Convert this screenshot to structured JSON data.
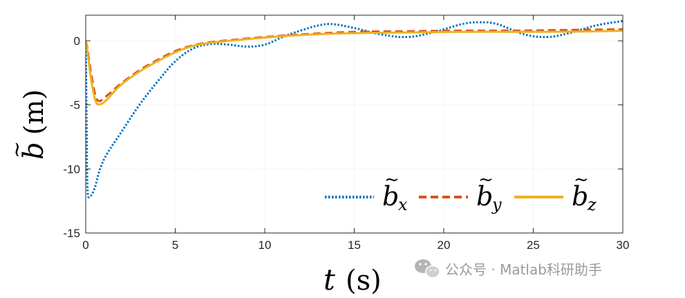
{
  "chart_data": {
    "type": "line",
    "ylabel": {
      "symbol": "b",
      "accent": "~",
      "unit": "(m)"
    },
    "xlabel": {
      "symbol": "t",
      "unit": "(s)"
    },
    "xlim": [
      0,
      30
    ],
    "ylim": [
      -15,
      2
    ],
    "xticks": [
      0,
      5,
      10,
      15,
      20,
      25,
      30
    ],
    "yticks": [
      -15,
      -10,
      -5,
      0
    ],
    "xtick_labels": [
      "0",
      "5",
      "10",
      "15",
      "20",
      "25",
      "30"
    ],
    "ytick_labels": [
      "-15",
      "-10",
      "-5",
      "0"
    ],
    "grid": true,
    "legend_position": "bottom-right",
    "series": [
      {
        "name": "b̃x",
        "symbol": "b",
        "subscript": "x",
        "color": "#0072BD",
        "style": "dotted",
        "points": [
          [
            0,
            0
          ],
          [
            0.05,
            -6
          ],
          [
            0.1,
            -11.5
          ],
          [
            0.25,
            -12.1
          ],
          [
            0.5,
            -11.5
          ],
          [
            0.8,
            -10.0
          ],
          [
            1.2,
            -8.8
          ],
          [
            2.0,
            -7.1
          ],
          [
            3.0,
            -5.0
          ],
          [
            4.0,
            -3.2
          ],
          [
            5.0,
            -1.6
          ],
          [
            6.0,
            -0.6
          ],
          [
            7.0,
            -0.25
          ],
          [
            8.0,
            -0.3
          ],
          [
            9.0,
            -0.45
          ],
          [
            10.0,
            -0.3
          ],
          [
            11.0,
            0.3
          ],
          [
            12.0,
            0.8
          ],
          [
            13.0,
            1.2
          ],
          [
            13.8,
            1.3
          ],
          [
            15.0,
            1.0
          ],
          [
            16.5,
            0.5
          ],
          [
            18.0,
            0.3
          ],
          [
            19.5,
            0.7
          ],
          [
            21.0,
            1.3
          ],
          [
            22.0,
            1.45
          ],
          [
            23.0,
            1.3
          ],
          [
            24.5,
            0.5
          ],
          [
            25.8,
            0.3
          ],
          [
            27.0,
            0.6
          ],
          [
            28.5,
            1.2
          ],
          [
            30,
            1.55
          ]
        ]
      },
      {
        "name": "b̃y",
        "symbol": "b",
        "subscript": "y",
        "color": "#D95319",
        "style": "dashed",
        "points": [
          [
            0,
            0
          ],
          [
            0.1,
            -0.6
          ],
          [
            0.3,
            -2.5
          ],
          [
            0.55,
            -4.3
          ],
          [
            0.75,
            -4.7
          ],
          [
            1.0,
            -4.5
          ],
          [
            1.5,
            -3.9
          ],
          [
            2.0,
            -3.3
          ],
          [
            3.0,
            -2.3
          ],
          [
            4.0,
            -1.5
          ],
          [
            5.0,
            -0.8
          ],
          [
            6.0,
            -0.35
          ],
          [
            7.0,
            -0.1
          ],
          [
            8.0,
            0.05
          ],
          [
            10.0,
            0.3
          ],
          [
            12.0,
            0.5
          ],
          [
            15.0,
            0.7
          ],
          [
            18.0,
            0.75
          ],
          [
            21.0,
            0.8
          ],
          [
            24.0,
            0.8
          ],
          [
            27.0,
            0.85
          ],
          [
            30,
            0.9
          ]
        ]
      },
      {
        "name": "b̃z",
        "symbol": "b",
        "subscript": "z",
        "color": "#EDB120",
        "style": "solid",
        "points": [
          [
            0,
            0
          ],
          [
            0.1,
            -0.8
          ],
          [
            0.3,
            -3.0
          ],
          [
            0.55,
            -4.7
          ],
          [
            0.8,
            -4.95
          ],
          [
            1.1,
            -4.7
          ],
          [
            1.5,
            -4.1
          ],
          [
            2.0,
            -3.4
          ],
          [
            3.0,
            -2.4
          ],
          [
            4.0,
            -1.6
          ],
          [
            5.0,
            -0.9
          ],
          [
            6.0,
            -0.4
          ],
          [
            7.0,
            -0.15
          ],
          [
            8.0,
            0.0
          ],
          [
            10.0,
            0.25
          ],
          [
            12.0,
            0.45
          ],
          [
            15.0,
            0.6
          ],
          [
            18.0,
            0.65
          ],
          [
            21.0,
            0.7
          ],
          [
            24.0,
            0.7
          ],
          [
            27.0,
            0.72
          ],
          [
            30,
            0.78
          ]
        ]
      }
    ]
  },
  "watermark": {
    "icon": "wechat-icon",
    "text": "公众号 · Matlab科研助手"
  }
}
